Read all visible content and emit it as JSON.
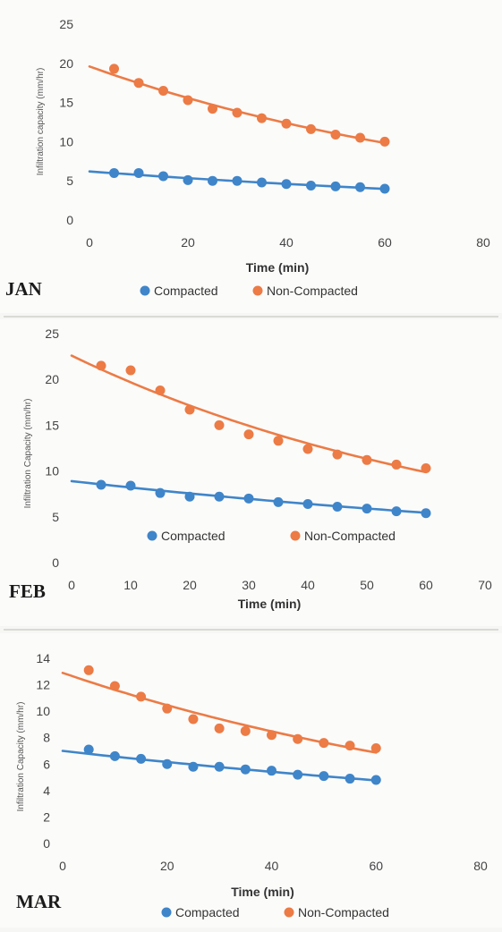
{
  "colors": {
    "compacted": "#3f85c9",
    "non_compacted": "#ec7b45"
  },
  "legend_labels": {
    "compacted": "Compacted",
    "non_compacted": "Non-Compacted"
  },
  "chart_data": [
    {
      "type": "scatter",
      "panel_label": "JAN",
      "xlabel": "Time (min)",
      "ylabel": "Infiltration capacity (mm/hr)",
      "xlim": [
        0,
        80
      ],
      "ylim": [
        0,
        25
      ],
      "xticks": [
        0,
        20,
        40,
        60,
        80
      ],
      "yticks": [
        0,
        5,
        10,
        15,
        20,
        25
      ],
      "trendline": "exponential",
      "series": [
        {
          "name": "Compacted",
          "x": [
            5,
            10,
            15,
            20,
            25,
            30,
            35,
            40,
            45,
            50,
            55,
            60
          ],
          "y": [
            6.0,
            6.0,
            5.6,
            5.1,
            5.0,
            5.0,
            4.8,
            4.6,
            4.4,
            4.3,
            4.2,
            4.0
          ],
          "trend": {
            "a": 6.2,
            "b": -0.0074
          }
        },
        {
          "name": "Non-Compacted",
          "x": [
            5,
            10,
            15,
            20,
            25,
            30,
            35,
            40,
            45,
            50,
            55,
            60
          ],
          "y": [
            19.3,
            17.5,
            16.5,
            15.3,
            14.2,
            13.7,
            13.0,
            12.3,
            11.6,
            10.9,
            10.5,
            10.0
          ],
          "trend": {
            "a": 19.6,
            "b": -0.0115
          }
        }
      ],
      "legend": "bottom"
    },
    {
      "type": "scatter",
      "panel_label": "FEB",
      "xlabel": "Time (min)",
      "ylabel": "Infiltration Capacity (mm/hr)",
      "xlim": [
        0,
        70
      ],
      "ylim": [
        0,
        25
      ],
      "xticks": [
        0,
        10,
        20,
        30,
        40,
        50,
        60,
        70
      ],
      "yticks": [
        0,
        5,
        10,
        15,
        20,
        25
      ],
      "trendline": "exponential",
      "series": [
        {
          "name": "Compacted",
          "x": [
            5,
            10,
            15,
            20,
            25,
            30,
            35,
            40,
            45,
            50,
            55,
            60
          ],
          "y": [
            8.5,
            8.4,
            7.6,
            7.2,
            7.2,
            7.0,
            6.6,
            6.4,
            6.1,
            5.9,
            5.6,
            5.4
          ],
          "trend": {
            "a": 8.9,
            "b": -0.0082
          }
        },
        {
          "name": "Non-Compacted",
          "x": [
            5,
            10,
            15,
            20,
            25,
            30,
            35,
            40,
            45,
            50,
            55,
            60
          ],
          "y": [
            21.5,
            21.0,
            18.8,
            16.7,
            15.0,
            14.0,
            13.3,
            12.4,
            11.8,
            11.2,
            10.7,
            10.3
          ],
          "trend": {
            "a": 22.6,
            "b": -0.0138
          }
        }
      ],
      "legend": "inside-bottom"
    },
    {
      "type": "scatter",
      "panel_label": "MAR",
      "xlabel": "Time (min)",
      "ylabel": "Infiltration Capacity (mm/hr)",
      "xlim": [
        0,
        80
      ],
      "ylim": [
        0,
        14
      ],
      "xticks": [
        0,
        20,
        40,
        60,
        80
      ],
      "yticks": [
        0,
        2,
        4,
        6,
        8,
        10,
        12,
        14
      ],
      "trendline": "exponential",
      "series": [
        {
          "name": "Compacted",
          "x": [
            5,
            10,
            15,
            20,
            25,
            30,
            35,
            40,
            45,
            50,
            55,
            60
          ],
          "y": [
            7.1,
            6.6,
            6.4,
            6.0,
            5.8,
            5.8,
            5.6,
            5.5,
            5.2,
            5.1,
            4.9,
            4.8
          ],
          "trend": {
            "a": 7.0,
            "b": -0.0064
          }
        },
        {
          "name": "Non-Compacted",
          "x": [
            5,
            10,
            15,
            20,
            25,
            30,
            35,
            40,
            45,
            50,
            55,
            60
          ],
          "y": [
            13.1,
            11.9,
            11.1,
            10.2,
            9.4,
            8.7,
            8.5,
            8.2,
            7.9,
            7.6,
            7.4,
            7.2
          ],
          "trend": {
            "a": 12.9,
            "b": -0.0105
          }
        }
      ],
      "legend": "bottom"
    }
  ]
}
